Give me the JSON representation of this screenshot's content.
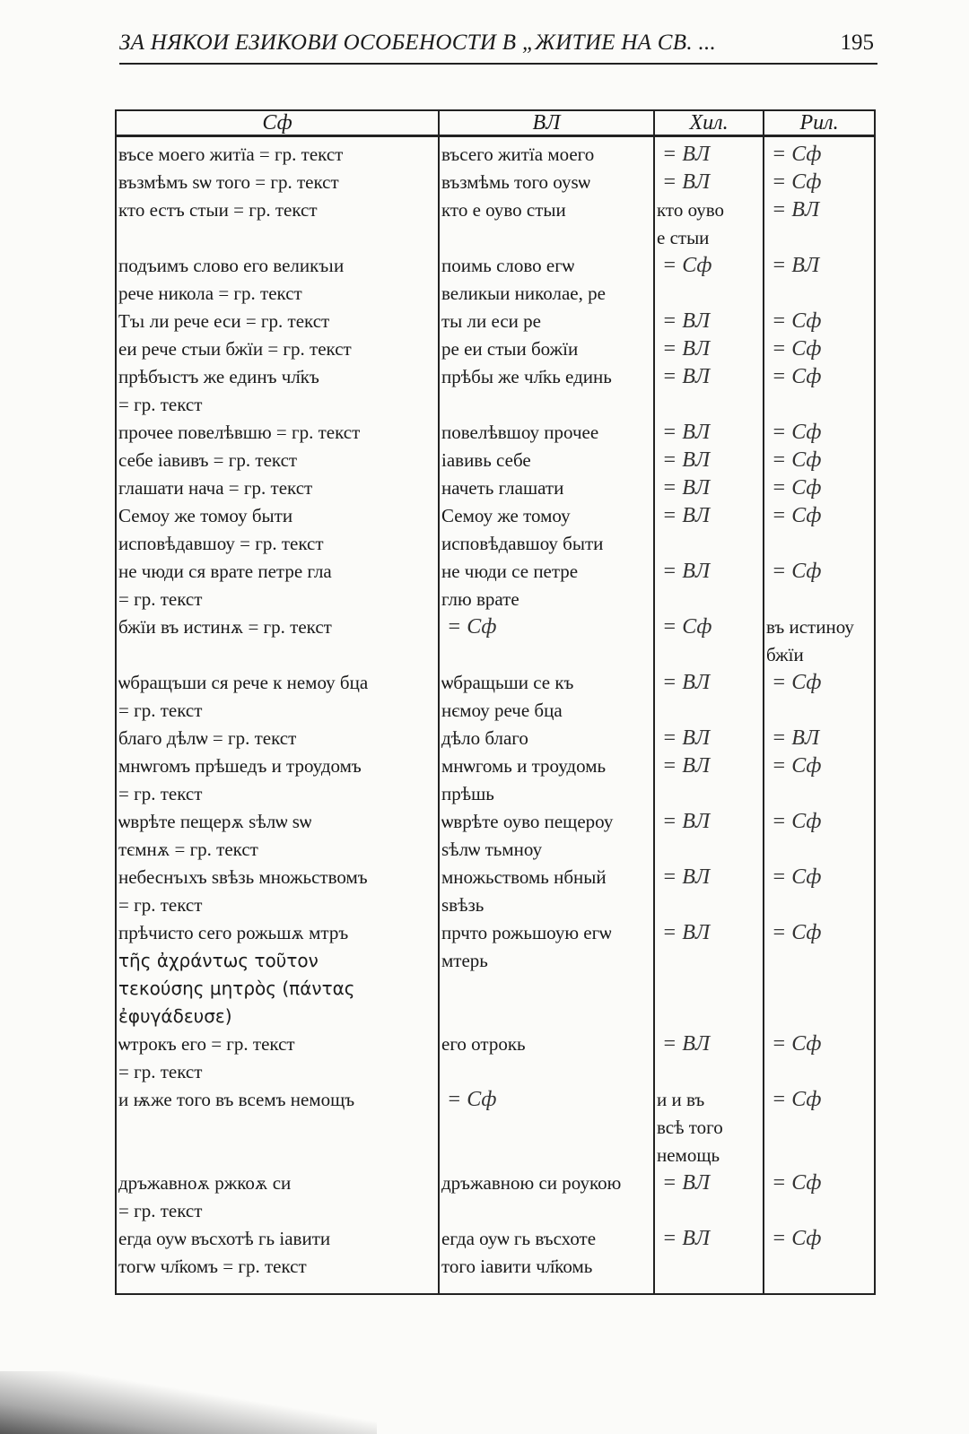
{
  "header": {
    "title": "ЗА НЯКОИ ЕЗИКОВИ ОСОБЕНОСТИ В „ЖИТИЕ НА СВ. ...",
    "page_number": "195"
  },
  "table": {
    "columns": [
      "Сф",
      "ВЛ",
      "Хил.",
      "Рил."
    ],
    "rows": [
      {
        "sf": [
          "въсе моего житїа = гр. текст"
        ],
        "vl": [
          "въсего житїа моего"
        ],
        "hil": [
          "= ВЛ"
        ],
        "ril": [
          "= Сф"
        ]
      },
      {
        "sf": [
          "възмѣмъ ѕѡ того = гр. текст"
        ],
        "vl": [
          "възмѣмь того оуѕѡ"
        ],
        "hil": [
          "= ВЛ"
        ],
        "ril": [
          "= Сф"
        ]
      },
      {
        "sf": [
          "кто естъ стыи = гр. текст"
        ],
        "vl": [
          "кто е оуво стыи"
        ],
        "hil": [
          "кто оуво",
          "е стыи"
        ],
        "ril": [
          "= ВЛ"
        ]
      },
      {
        "sf": [
          "подъимъ слово его великъıи",
          "рече никола = гр. текст"
        ],
        "vl": [
          "поимь слово егѡ",
          "великыи николае, ре"
        ],
        "hil": [
          "= Сф"
        ],
        "ril": [
          "= ВЛ"
        ]
      },
      {
        "sf": [
          "Тъı ли рече еси = гр. текст"
        ],
        "vl": [
          "ты ли еси ре"
        ],
        "hil": [
          "= ВЛ"
        ],
        "ril": [
          "= Сф"
        ]
      },
      {
        "sf": [
          "еи рече стыи бжїи = гр. текст"
        ],
        "vl": [
          "ре еи стыи божїи"
        ],
        "hil": [
          "= ВЛ"
        ],
        "ril": [
          "= Сф"
        ]
      },
      {
        "sf": [
          "прѣбъıстъ же единъ чл҃къ",
          "= гр. текст"
        ],
        "vl": [
          "прѣбы же чл҃кь единь"
        ],
        "hil": [
          "= ВЛ"
        ],
        "ril": [
          "= Сф"
        ]
      },
      {
        "sf": [
          "прочее повелѣвшю = гр. текст"
        ],
        "vl": [
          "повелѣвшоу прочее"
        ],
        "hil": [
          "= ВЛ"
        ],
        "ril": [
          "= Сф"
        ]
      },
      {
        "sf": [
          "себе іавивъ = гр. текст"
        ],
        "vl": [
          "іавивь себе"
        ],
        "hil": [
          "= ВЛ"
        ],
        "ril": [
          "= Сф"
        ]
      },
      {
        "sf": [
          "глашати нача = гр. текст"
        ],
        "vl": [
          "начеть глашати"
        ],
        "hil": [
          "= ВЛ"
        ],
        "ril": [
          "= Сф"
        ]
      },
      {
        "sf": [
          "Семоу же томоу быти",
          "исповѣдавшоу = гр. текст"
        ],
        "vl": [
          "Семоу же томоу",
          "исповѣдавшоу быти"
        ],
        "hil": [
          "= ВЛ"
        ],
        "ril": [
          "= Сф"
        ]
      },
      {
        "sf": [
          "не чюди ся врате петре гла",
          "= гр. текст"
        ],
        "vl": [
          "не чюди се петре",
          "глю врате"
        ],
        "hil": [
          "= ВЛ"
        ],
        "ril": [
          "= Сф"
        ]
      },
      {
        "sf": [
          "бжїи въ истинѫ = гр. текст"
        ],
        "vl": [
          "= Сф"
        ],
        "hil": [
          "= Сф"
        ],
        "ril": [
          "въ истиноу",
          "бжїи"
        ]
      },
      {
        "sf": [
          "ѡбращъши ся рече к немоу бца",
          "= гр. текст"
        ],
        "vl": [
          "ѡбращьши се къ",
          "нємоу рече бца"
        ],
        "hil": [
          "= ВЛ"
        ],
        "ril": [
          "= Сф"
        ]
      },
      {
        "sf": [
          "благо дѣлѡ = гр. текст"
        ],
        "vl": [
          "дѣло благо"
        ],
        "hil": [
          "= ВЛ"
        ],
        "ril": [
          "= ВЛ"
        ]
      },
      {
        "sf": [
          "мнѡгомъ прѣшедъ и троудомъ",
          "= гр. текст"
        ],
        "vl": [
          "мнѡгомь и троудомь",
          "прѣшь"
        ],
        "hil": [
          "= ВЛ"
        ],
        "ril": [
          "= Сф"
        ]
      },
      {
        "sf": [
          "ѡврѣте пещерѫ ѕѣлѡ ѕѡ",
          "тємнѫ = гр. текст"
        ],
        "vl": [
          "ѡврѣте оуво пещероу",
          "ѕѣлѡ тьмноу"
        ],
        "hil": [
          "= ВЛ"
        ],
        "ril": [
          "= Сф"
        ]
      },
      {
        "sf": [
          "небеснъıхъ ѕвѣзь множьствомъ",
          "= гр. текст"
        ],
        "vl": [
          "множьствомь нбный",
          "ѕвѣзь"
        ],
        "hil": [
          "= ВЛ"
        ],
        "ril": [
          "= Сф"
        ]
      },
      {
        "sf": [
          "прѣчисто сего рожьшѫ мтръ",
          "τῆς ἀχράντως τοῦτον",
          "τεκούσης μητρὸς (πάντας",
          "ἐφυγάδευσε)"
        ],
        "vl": [
          "прчто рожьшоую егѡ",
          "мтерь"
        ],
        "hil": [
          "= ВЛ"
        ],
        "ril": [
          "= Сф"
        ]
      },
      {
        "sf": [
          "ѡтрокъ его = гр. текст",
          "= гр. текст"
        ],
        "vl": [
          "его отрокь"
        ],
        "hil": [
          "= ВЛ"
        ],
        "ril": [
          "= Сф"
        ]
      },
      {
        "sf": [
          "и ѭже того въ всемъ немощъ"
        ],
        "vl": [
          "= Сф"
        ],
        "hil": [
          "и и въ",
          "всѣ того",
          "немощь"
        ],
        "ril": [
          "= Сф"
        ]
      },
      {
        "sf": [
          "дръжавноѫ ржкоѫ си",
          "= гр. текст"
        ],
        "vl": [
          "дръжавною си роукою"
        ],
        "hil": [
          "= ВЛ"
        ],
        "ril": [
          "= Сф"
        ]
      },
      {
        "sf": [
          "егда оуѡ въсхотѣ гь іавити",
          "тогѡ чл҃комъ = гр. текст"
        ],
        "vl": [
          "егда оуѡ гь въсхоте",
          "того іавити чл҃комь"
        ],
        "hil": [
          "= ВЛ"
        ],
        "ril": [
          "= Сф"
        ]
      }
    ]
  }
}
